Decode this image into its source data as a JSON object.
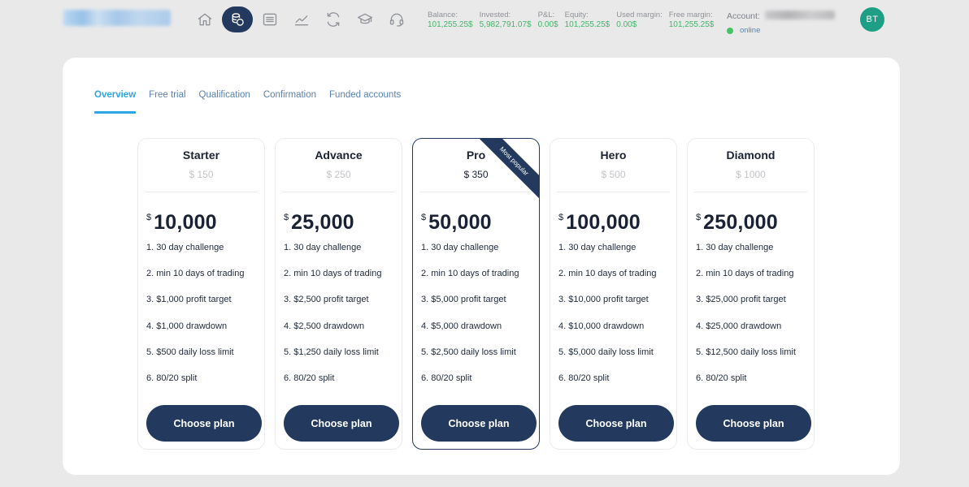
{
  "header": {
    "nav": [
      {
        "icon": "home-icon",
        "active": false
      },
      {
        "icon": "coins-icon",
        "active": true
      },
      {
        "icon": "list-icon",
        "active": false
      },
      {
        "icon": "chart-icon",
        "active": false
      },
      {
        "icon": "refresh-icon",
        "active": false
      },
      {
        "icon": "graduation-cap-icon",
        "active": false
      },
      {
        "icon": "headset-icon",
        "active": false
      }
    ],
    "stats": [
      {
        "label": "Balance:",
        "value": "101,255.25$"
      },
      {
        "label": "Invested:",
        "value": "5,982,791.07$"
      },
      {
        "label": "P&L:",
        "value": "0.00$"
      },
      {
        "label": "Equity:",
        "value": "101,255.25$"
      },
      {
        "label": "Used margin:",
        "value": "0.00$"
      },
      {
        "label": "Free margin:",
        "value": "101,255.25$"
      }
    ],
    "account_label": "Account:",
    "status": "online",
    "avatar_initials": "BT",
    "colors": {
      "positive": "#46b36b",
      "status_online": "#44c467",
      "avatar_bg": "#1e9e84"
    }
  },
  "tabs": [
    {
      "label": "Overview",
      "active": true
    },
    {
      "label": "Free trial",
      "active": false
    },
    {
      "label": "Qualification",
      "active": false
    },
    {
      "label": "Confirmation",
      "active": false
    },
    {
      "label": "Funded accounts",
      "active": false
    }
  ],
  "plans": [
    {
      "name": "Starter",
      "fee": "$ 150",
      "currency": "$",
      "amount": "10,000",
      "featured": false,
      "features": [
        "1. 30 day challenge",
        "2. min 10 days of trading",
        "3. $1,000 profit target",
        "4. $1,000 drawdown",
        "5. $500 daily loss limit",
        "6. 80/20 split"
      ],
      "button": "Choose plan"
    },
    {
      "name": "Advance",
      "fee": "$ 250",
      "currency": "$",
      "amount": "25,000",
      "featured": false,
      "features": [
        "1. 30 day challenge",
        "2. min 10 days of trading",
        "3. $2,500 profit target",
        "4. $2,500 drawdown",
        "5. $1,250 daily loss limit",
        "6. 80/20 split"
      ],
      "button": "Choose plan"
    },
    {
      "name": "Pro",
      "fee": "$ 350",
      "currency": "$",
      "amount": "50,000",
      "featured": true,
      "badge": "Most popular",
      "features": [
        "1. 30 day challenge",
        "2. min 10 days of trading",
        "3. $5,000 profit target",
        "4. $5,000 drawdown",
        "5. $2,500 daily loss limit",
        "6. 80/20 split"
      ],
      "button": "Choose plan"
    },
    {
      "name": "Hero",
      "fee": "$ 500",
      "currency": "$",
      "amount": "100,000",
      "featured": false,
      "features": [
        "1. 30 day challenge",
        "2. min 10 days of trading",
        "3. $10,000 profit target",
        "4. $10,000 drawdown",
        "5. $5,000 daily loss limit",
        "6. 80/20 split"
      ],
      "button": "Choose plan"
    },
    {
      "name": "Diamond",
      "fee": "$ 1000",
      "currency": "$",
      "amount": "250,000",
      "featured": false,
      "features": [
        "1. 30 day challenge",
        "2. min 10 days of trading",
        "3. $25,000 profit target",
        "4. $25,000 drawdown",
        "5. $12,500 daily loss limit",
        "6. 80/20 split"
      ],
      "button": "Choose plan"
    }
  ],
  "theme": {
    "primary": "#233a5e",
    "tab_active": "#2ea6e6",
    "tab_inactive": "#5a80ad"
  }
}
